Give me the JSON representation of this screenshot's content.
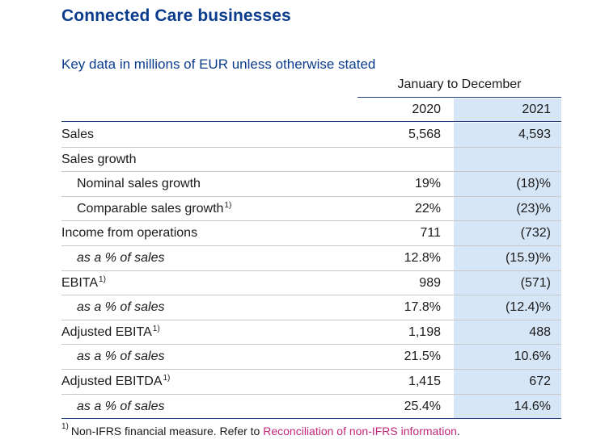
{
  "title": "Connected Care businesses",
  "caption": "Key data in millions of EUR unless otherwise stated",
  "period": "January to December",
  "columns": [
    "2020",
    "2021"
  ],
  "rows": [
    {
      "label": "Sales",
      "sup": "",
      "v2020": "5,568",
      "v2021": "4,593"
    },
    {
      "label": "Sales growth",
      "sup": "",
      "v2020": "",
      "v2021": ""
    },
    {
      "label": "Nominal sales growth",
      "sup": "",
      "v2020": "19%",
      "v2021": "(18)%"
    },
    {
      "label": "Comparable sales growth",
      "sup": "1)",
      "v2020": "22%",
      "v2021": "(23)%"
    },
    {
      "label": "Income from operations",
      "sup": "",
      "v2020": "711",
      "v2021": "(732)"
    },
    {
      "label": "as a % of sales",
      "sup": "",
      "v2020": "12.8%",
      "v2021": "(15.9)%"
    },
    {
      "label": "EBITA",
      "sup": "1)",
      "v2020": "989",
      "v2021": "(571)"
    },
    {
      "label": "as a % of sales",
      "sup": "",
      "v2020": "17.8%",
      "v2021": "(12.4)%"
    },
    {
      "label": "Adjusted EBITA",
      "sup": "1)",
      "v2020": "1,198",
      "v2021": "488"
    },
    {
      "label": "as a % of sales",
      "sup": "",
      "v2020": "21.5%",
      "v2021": "10.6%"
    },
    {
      "label": "Adjusted EBITDA",
      "sup": "1)",
      "v2020": "1,415",
      "v2021": "672"
    },
    {
      "label": "as a % of sales",
      "sup": "",
      "v2020": "25.4%",
      "v2021": "14.6%"
    }
  ],
  "footnote": {
    "marker": "1)",
    "text": "Non-IFRS financial measure. Refer to",
    "link_text": "Reconciliation of non-IFRS information",
    "end": "."
  },
  "colors": {
    "title": "#0b3c8c",
    "highlight_column": "#d6e6f7",
    "link": "#c0287c"
  }
}
